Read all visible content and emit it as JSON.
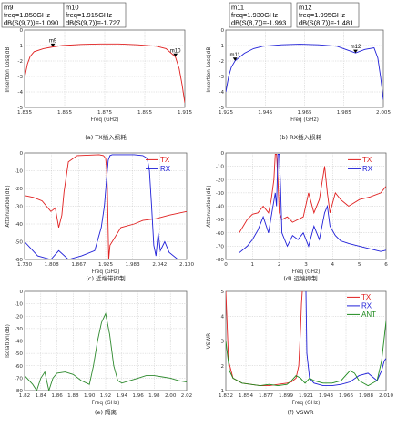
{
  "colors": {
    "TX": "#e02020",
    "RX": "#2020d8",
    "ANT": "#1e8a1e",
    "iso": "#2e8a2e",
    "grid": "#b8b8b8"
  },
  "chart_data": [
    {
      "type": "line",
      "id": "a",
      "caption": "(a) TX插入损耗",
      "xlabel": "Freq (GHz)",
      "ylabel": "Insertion Loss(dB)",
      "xlim": [
        1.835,
        1.92
      ],
      "ylim": [
        -5,
        0
      ],
      "xticks": [
        "1.835",
        "1.855",
        "1.875",
        "1.895",
        "1.915"
      ],
      "yticks": [
        "0",
        "-1",
        "-2",
        "-3",
        "-4",
        "-5"
      ],
      "series": [
        {
          "name": "TX",
          "color": "#e02020",
          "x": [
            1.835,
            1.8365,
            1.838,
            1.84,
            1.845,
            1.85,
            1.855,
            1.865,
            1.875,
            1.885,
            1.895,
            1.905,
            1.91,
            1.915,
            1.917,
            1.9185,
            1.92
          ],
          "y": [
            -3.1,
            -2.2,
            -1.7,
            -1.4,
            -1.2,
            -1.09,
            -1.0,
            -0.93,
            -0.9,
            -0.9,
            -0.95,
            -1.05,
            -1.2,
            -1.73,
            -2.5,
            -3.5,
            -4.7
          ]
        }
      ],
      "markers": [
        {
          "name": "m9",
          "x": 1.85,
          "y": -1.09
        },
        {
          "name": "m10",
          "x": 1.915,
          "y": -1.727
        }
      ],
      "marker_boxes": [
        {
          "lines": [
            "m9",
            "freq=1.850GHz",
            "dB(S(9,7))=-1.090"
          ]
        },
        {
          "lines": [
            "m10",
            "freq=1.915GHz",
            "dB(S(9,7))=-1.727"
          ]
        }
      ]
    },
    {
      "type": "line",
      "id": "b",
      "caption": "(b) RX插入损耗",
      "xlabel": "Freq (GHz)",
      "ylabel": "Insertion Loss(dB)",
      "xlim": [
        1.925,
        2.01
      ],
      "ylim": [
        -5,
        0
      ],
      "xticks": [
        "1.925",
        "1.945",
        "1.965",
        "1.985",
        "2.005"
      ],
      "yticks": [
        "0",
        "-1",
        "-2",
        "-3",
        "-4",
        "-5"
      ],
      "series": [
        {
          "name": "RX",
          "color": "#2020d8",
          "x": [
            1.925,
            1.9265,
            1.928,
            1.93,
            1.935,
            1.94,
            1.945,
            1.955,
            1.965,
            1.975,
            1.985,
            1.995,
            2.0,
            2.005,
            2.007,
            2.0085,
            2.01
          ],
          "y": [
            -4.0,
            -3.0,
            -2.4,
            -1.99,
            -1.5,
            -1.2,
            -1.05,
            -0.95,
            -0.92,
            -0.95,
            -1.05,
            -1.48,
            -1.25,
            -1.15,
            -1.8,
            -3.0,
            -4.5
          ]
        }
      ],
      "markers": [
        {
          "name": "m11",
          "x": 1.93,
          "y": -1.993
        },
        {
          "name": "m12",
          "x": 1.995,
          "y": -1.481
        }
      ],
      "marker_boxes": [
        {
          "lines": [
            "m11",
            "freq=1.930GHz",
            "dB(S(8,7))=-1.993"
          ]
        },
        {
          "lines": [
            "m12",
            "freq=1.995GHz",
            "dB(S(8,7))=-1.481"
          ]
        }
      ]
    },
    {
      "type": "line",
      "id": "c",
      "caption": "(c) 近端带抑制",
      "xlabel": "Freq (GHz)",
      "ylabel": "Attenuation(dB)",
      "xlim": [
        1.73,
        2.1
      ],
      "ylim": [
        -60,
        0
      ],
      "xticks": [
        "1.730",
        "1.808",
        "1.867",
        "1.925",
        "1.983",
        "2.042",
        "2.100"
      ],
      "yticks": [
        "0",
        "-10",
        "-20",
        "-30",
        "-40",
        "-50",
        "-60"
      ],
      "legend": [
        "TX",
        "RX"
      ],
      "series": [
        {
          "name": "TX",
          "color": "#e02020",
          "x": [
            1.73,
            1.75,
            1.77,
            1.79,
            1.8,
            1.808,
            1.815,
            1.82,
            1.83,
            1.85,
            1.9,
            1.91,
            1.915,
            1.917,
            1.919,
            1.922,
            1.925,
            1.935,
            1.95,
            1.98,
            2.0,
            2.03,
            2.06,
            2.1
          ],
          "y": [
            -24,
            -25,
            -27,
            -33,
            -31,
            -42,
            -35,
            -22,
            -5,
            -1.5,
            -1,
            -1.5,
            -3,
            -8,
            -20,
            -60,
            -52,
            -48,
            -42,
            -40,
            -38,
            -37,
            -35,
            -33
          ]
        },
        {
          "name": "RX",
          "color": "#2020d8",
          "x": [
            1.73,
            1.76,
            1.79,
            1.808,
            1.83,
            1.86,
            1.89,
            1.905,
            1.912,
            1.917,
            1.921,
            1.925,
            1.93,
            1.98,
            2.0,
            2.01,
            2.015,
            2.02,
            2.025,
            2.03,
            2.035,
            2.04,
            2.05,
            2.06,
            2.08,
            2.1
          ],
          "y": [
            -50,
            -58,
            -60,
            -55,
            -60,
            -58,
            -55,
            -42,
            -30,
            -15,
            -4,
            -1.5,
            -1,
            -1,
            -1.5,
            -3,
            -10,
            -30,
            -52,
            -58,
            -45,
            -55,
            -50,
            -56,
            -60,
            -60
          ]
        }
      ]
    },
    {
      "type": "line",
      "id": "d",
      "caption": "(d) 远端抑制",
      "xlabel": "Freq (GHz)",
      "ylabel": "Attenuation(dB)",
      "xlim": [
        0,
        6
      ],
      "ylim": [
        -80,
        0
      ],
      "xticks": [
        "0",
        "1",
        "2",
        "3",
        "4",
        "5",
        "6"
      ],
      "yticks": [
        "0",
        "-10",
        "-20",
        "-30",
        "-40",
        "-50",
        "-60",
        "-70",
        "-80"
      ],
      "legend": [
        "TX",
        "RX"
      ],
      "series": [
        {
          "name": "TX",
          "color": "#e02020",
          "x": [
            0.5,
            0.8,
            1.0,
            1.2,
            1.4,
            1.6,
            1.7,
            1.8,
            1.85,
            1.9,
            1.95,
            2.0,
            2.1,
            2.3,
            2.5,
            2.7,
            2.9,
            3.1,
            3.3,
            3.5,
            3.7,
            3.8,
            3.9,
            4.1,
            4.3,
            4.6,
            5.0,
            5.4,
            5.8,
            6.0
          ],
          "y": [
            -60,
            -50,
            -46,
            -45,
            -40,
            -45,
            -35,
            -20,
            -1,
            -1,
            -20,
            -45,
            -50,
            -48,
            -52,
            -50,
            -48,
            -30,
            -45,
            -35,
            -10,
            -30,
            -45,
            -30,
            -35,
            -40,
            -35,
            -33,
            -30,
            -25
          ]
        },
        {
          "name": "RX",
          "color": "#2020d8",
          "x": [
            0.5,
            0.8,
            1.0,
            1.2,
            1.4,
            1.6,
            1.75,
            1.85,
            1.9,
            1.95,
            2.0,
            2.05,
            2.1,
            2.3,
            2.5,
            2.7,
            2.9,
            3.1,
            3.3,
            3.5,
            3.7,
            3.8,
            3.9,
            4.1,
            4.3,
            4.6,
            5.0,
            5.4,
            5.8,
            6.0
          ],
          "y": [
            -75,
            -70,
            -65,
            -58,
            -48,
            -60,
            -42,
            -30,
            -40,
            -1,
            -1,
            -25,
            -60,
            -70,
            -62,
            -65,
            -60,
            -70,
            -55,
            -65,
            -45,
            -40,
            -55,
            -62,
            -66,
            -68,
            -70,
            -72,
            -74,
            -73
          ]
        }
      ]
    },
    {
      "type": "line",
      "id": "e",
      "caption": "(e) 隔离",
      "xlabel": "Freq (GHz)",
      "ylabel": "Isolation(dB)",
      "xlim": [
        1.82,
        2.02
      ],
      "ylim": [
        -80,
        0
      ],
      "xticks": [
        "1.82",
        "1.84",
        "1.86",
        "1.88",
        "1.90",
        "1.92",
        "1.94",
        "1.96",
        "1.98",
        "2.00",
        "2.02"
      ],
      "yticks": [
        "0",
        "-10",
        "-20",
        "-30",
        "-40",
        "-50",
        "-60",
        "-70",
        "-80"
      ],
      "series": [
        {
          "name": "Isolation",
          "color": "#2e8a2e",
          "x": [
            1.82,
            1.83,
            1.835,
            1.84,
            1.845,
            1.85,
            1.855,
            1.86,
            1.87,
            1.88,
            1.89,
            1.9,
            1.905,
            1.91,
            1.915,
            1.92,
            1.925,
            1.93,
            1.935,
            1.94,
            1.95,
            1.96,
            1.97,
            1.98,
            1.99,
            2.0,
            2.01,
            2.02
          ],
          "y": [
            -68,
            -75,
            -80,
            -70,
            -65,
            -80,
            -70,
            -66,
            -65,
            -67,
            -72,
            -75,
            -60,
            -40,
            -25,
            -18,
            -35,
            -60,
            -72,
            -74,
            -72,
            -70,
            -68,
            -68,
            -69,
            -70,
            -72,
            -73
          ]
        }
      ]
    },
    {
      "type": "line",
      "id": "f",
      "caption": "(f) VSWR",
      "xlabel": "Freq (GHz)",
      "ylabel": "VSWR",
      "xlim": [
        1.832,
        2.01
      ],
      "ylim": [
        1,
        5
      ],
      "xticks": [
        "1.832",
        "1.854",
        "1.877",
        "1.899",
        "1.921",
        "1.943",
        "1.966",
        "1.988",
        "2.010"
      ],
      "yticks": [
        "5",
        "4",
        "3",
        "2",
        "1"
      ],
      "legend": [
        "TX",
        "RX",
        "ANT"
      ],
      "series": [
        {
          "name": "TX",
          "color": "#e02020",
          "x": [
            1.832,
            1.835,
            1.84,
            1.85,
            1.86,
            1.87,
            1.88,
            1.89,
            1.9,
            1.905,
            1.91,
            1.913,
            1.915,
            1.916,
            1.917
          ],
          "y": [
            5,
            2.2,
            1.5,
            1.3,
            1.25,
            1.2,
            1.2,
            1.25,
            1.3,
            1.35,
            1.5,
            2.0,
            3.5,
            4.5,
            5
          ]
        },
        {
          "name": "RX",
          "color": "#2020d8",
          "x": [
            1.921,
            1.922,
            1.925,
            1.93,
            1.94,
            1.95,
            1.96,
            1.97,
            1.98,
            1.99,
            2.0,
            2.005,
            2.008,
            2.01
          ],
          "y": [
            5,
            2.5,
            1.5,
            1.3,
            1.2,
            1.2,
            1.25,
            1.35,
            1.6,
            1.7,
            1.4,
            1.8,
            2.2,
            2.3
          ]
        },
        {
          "name": "ANT",
          "color": "#1e8a1e",
          "x": [
            1.832,
            1.836,
            1.84,
            1.85,
            1.86,
            1.87,
            1.88,
            1.89,
            1.9,
            1.905,
            1.91,
            1.915,
            1.92,
            1.925,
            1.93,
            1.94,
            1.95,
            1.96,
            1.965,
            1.97,
            1.975,
            1.98,
            1.99,
            2.0,
            2.005,
            2.01
          ],
          "y": [
            3.0,
            1.8,
            1.5,
            1.3,
            1.25,
            1.2,
            1.25,
            1.2,
            1.25,
            1.4,
            1.6,
            1.5,
            1.3,
            1.5,
            1.4,
            1.3,
            1.3,
            1.4,
            1.6,
            1.8,
            1.7,
            1.4,
            1.2,
            1.4,
            2.2,
            3.8
          ]
        }
      ]
    }
  ]
}
